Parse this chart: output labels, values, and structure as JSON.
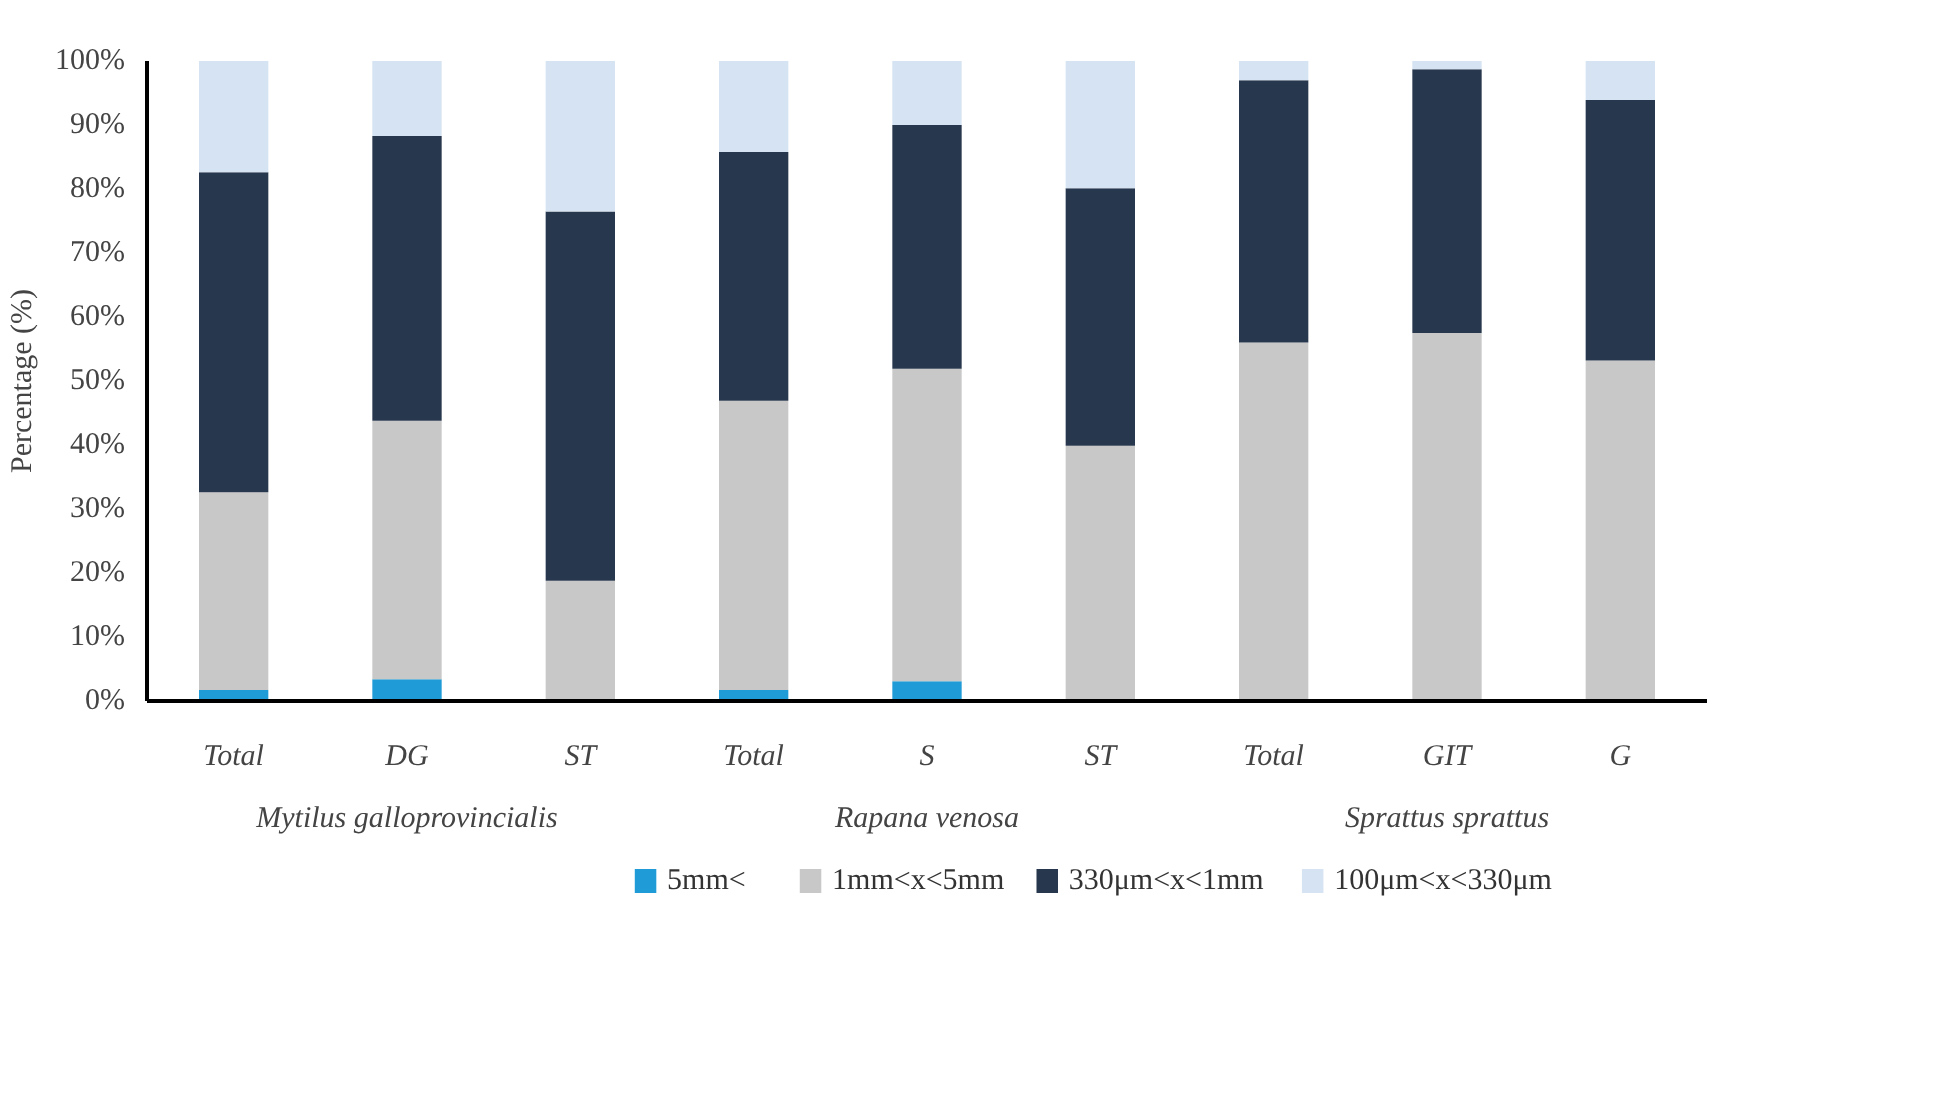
{
  "chart_data": {
    "type": "bar",
    "stacked": true,
    "ylabel": "Percentage (%)",
    "categories": [
      "Total",
      "DG",
      "ST",
      "Total",
      "S",
      "ST",
      "Total",
      "GIT",
      "G"
    ],
    "series": [
      {
        "name": "5mm<",
        "color": "#1f9bd7",
        "values": [
          1.7,
          3.4,
          0,
          1.7,
          3.1,
          0,
          0,
          0,
          0
        ]
      },
      {
        "name": "1mm<x<5mm",
        "color": "#c8c8c8",
        "values": [
          30.9,
          40.4,
          18.8,
          45.2,
          48.8,
          39.9,
          56,
          57.5,
          53.2
        ]
      },
      {
        "name": "330μm<x<1mm",
        "color": "#27374d",
        "values": [
          50,
          44.5,
          57.7,
          38.9,
          38.1,
          40.2,
          41,
          41.2,
          40.7
        ]
      },
      {
        "name": "100μm<x<330μm",
        "color": "#d6e3f2",
        "values": [
          17.4,
          11.7,
          23.5,
          14.2,
          10,
          19.9,
          3,
          1.3,
          6.1
        ]
      }
    ],
    "ylim": [
      0,
      100
    ],
    "yticks": [
      {
        "value": 0,
        "label": "0%"
      },
      {
        "value": 10,
        "label": "10%"
      },
      {
        "value": 20,
        "label": "20%"
      },
      {
        "value": 30,
        "label": "30%"
      },
      {
        "value": 40,
        "label": "40%"
      },
      {
        "value": 50,
        "label": "50%"
      },
      {
        "value": 60,
        "label": "60%"
      },
      {
        "value": 70,
        "label": "70%"
      },
      {
        "value": 80,
        "label": "80%"
      },
      {
        "value": 90,
        "label": "90%"
      },
      {
        "value": 100,
        "label": "100%"
      }
    ],
    "annotations": [
      "Mytilus galloprovincialis",
      "Rapana venosa",
      "Sprattus sprattus"
    ],
    "legend": "bottom",
    "grid": false
  }
}
